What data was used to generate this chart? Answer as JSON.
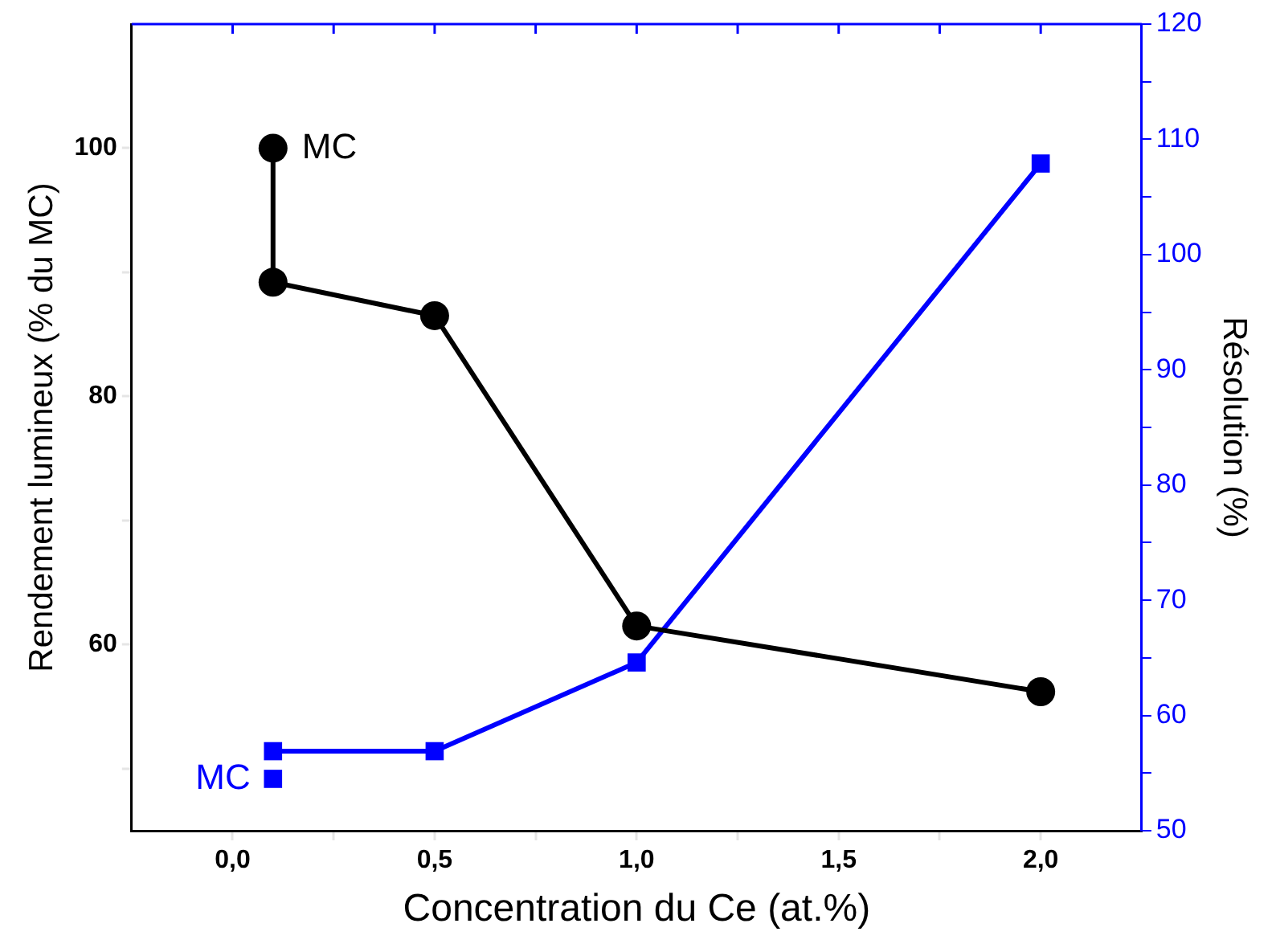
{
  "chart_data": {
    "type": "line",
    "xlabel": "Concentration du Ce (at.%)",
    "ylabel": "Rendement lumineux (% du MC)",
    "y2label": "Résolution (%)",
    "xlim": [
      -0.25,
      2.25
    ],
    "xticks": [
      {
        "value": 0,
        "label": "0,0"
      },
      {
        "value": 0.25,
        "label": null
      },
      {
        "value": 0.5,
        "label": "0,5"
      },
      {
        "value": 0.75,
        "label": null
      },
      {
        "value": 1,
        "label": "1,0"
      },
      {
        "value": 1.25,
        "label": null
      },
      {
        "value": 1.5,
        "label": "1,5"
      },
      {
        "value": 1.75,
        "label": null
      },
      {
        "value": 2,
        "label": "2,0"
      }
    ],
    "ylim": [
      45,
      110
    ],
    "yticks": [
      {
        "value": 50,
        "label": null
      },
      {
        "value": 60,
        "label": "60"
      },
      {
        "value": 70,
        "label": null
      },
      {
        "value": 80,
        "label": "80"
      },
      {
        "value": 90,
        "label": null
      },
      {
        "value": 100,
        "label": "100"
      }
    ],
    "y2lim": [
      50,
      120
    ],
    "y2ticks": [
      50,
      {
        "value": 55,
        "label": null
      },
      60,
      {
        "value": 65,
        "label": null
      },
      70,
      {
        "value": 75,
        "label": null
      },
      80,
      {
        "value": 85,
        "label": null
      },
      90,
      {
        "value": 95,
        "label": null
      },
      100,
      {
        "value": 105,
        "label": null
      },
      110,
      {
        "value": 115,
        "label": null
      },
      120
    ],
    "series": [
      {
        "type": "line",
        "color": "#000000",
        "marker": "circle",
        "x": [
          0.1,
          0.1,
          0.5,
          1,
          2
        ],
        "values": [
          100,
          89.2,
          86.5,
          61.5,
          56.2
        ]
      },
      {
        "type": "line",
        "color": "#0000ff",
        "marker": "square",
        "axis": "y2",
        "x": [
          0.1,
          0.5,
          1,
          2
        ],
        "values": [
          56.9,
          56.9,
          64.6,
          107.9
        ]
      },
      {
        "type": "scatter",
        "name": "MC",
        "color": "#0000ff",
        "marker": "square",
        "axis": "y2",
        "x": [
          0.1
        ],
        "values": [
          54.5
        ]
      }
    ],
    "annotations": [
      {
        "text": "MC",
        "x": 0.1,
        "y": 100
      }
    ],
    "grid": false,
    "legend": false
  }
}
